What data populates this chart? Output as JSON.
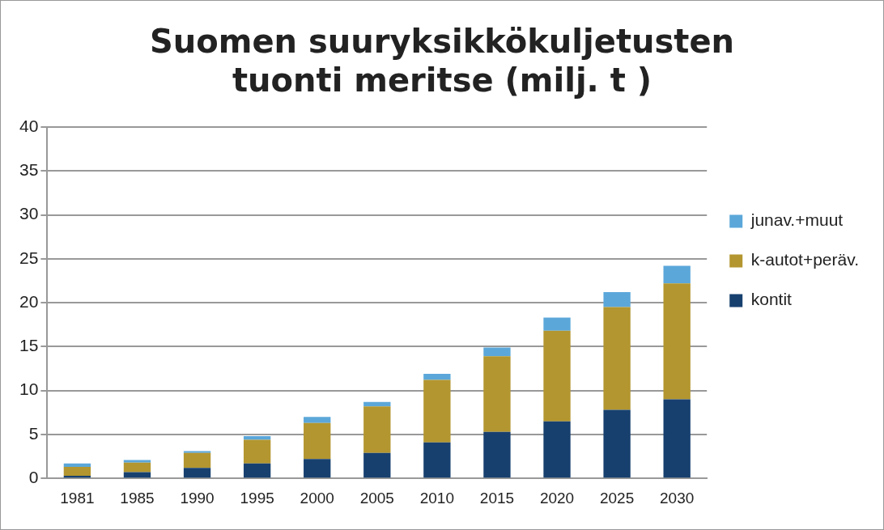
{
  "chart_data": {
    "type": "bar",
    "title": [
      "Suomen suuryksikkökuljetusten",
      "tuonti meritse (milj. t )"
    ],
    "categories": [
      "1981",
      "1985",
      "1990",
      "1995",
      "2000",
      "2005",
      "2010",
      "2015",
      "2020",
      "2025",
      "2030"
    ],
    "stacked": true,
    "series": [
      {
        "name": "kontit",
        "color": "#17406f",
        "values": [
          0.3,
          0.7,
          1.2,
          1.7,
          2.2,
          2.9,
          4.1,
          5.3,
          6.5,
          7.8,
          9.0
        ]
      },
      {
        "name": "k-autot+peräv.",
        "color": "#b3962f",
        "values": [
          1.0,
          1.1,
          1.7,
          2.7,
          4.1,
          5.3,
          7.1,
          8.6,
          10.3,
          11.7,
          13.2
        ]
      },
      {
        "name": "junav.+muut",
        "color": "#5ba7da",
        "values": [
          0.4,
          0.3,
          0.2,
          0.4,
          0.7,
          0.5,
          0.7,
          1.0,
          1.5,
          1.7,
          2.0
        ]
      }
    ],
    "ylim": [
      0,
      40
    ],
    "yticks": [
      0,
      5,
      10,
      15,
      20,
      25,
      30,
      35,
      40
    ],
    "grid": "y",
    "legend": "right"
  }
}
